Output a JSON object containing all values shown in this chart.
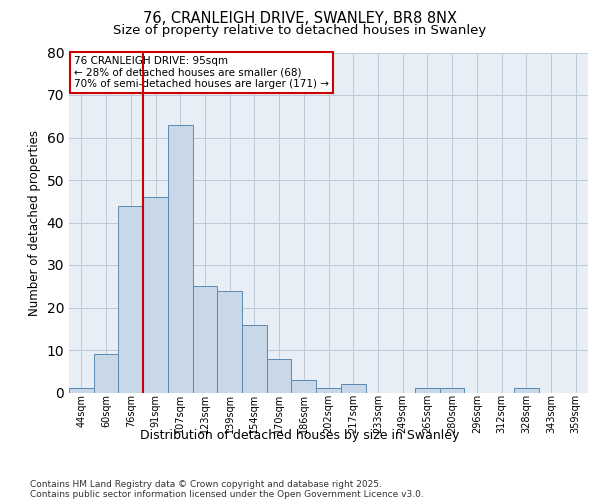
{
  "title_line1": "76, CRANLEIGH DRIVE, SWANLEY, BR8 8NX",
  "title_line2": "Size of property relative to detached houses in Swanley",
  "xlabel": "Distribution of detached houses by size in Swanley",
  "ylabel": "Number of detached properties",
  "categories": [
    "44sqm",
    "60sqm",
    "76sqm",
    "91sqm",
    "107sqm",
    "123sqm",
    "139sqm",
    "154sqm",
    "170sqm",
    "186sqm",
    "202sqm",
    "217sqm",
    "233sqm",
    "249sqm",
    "265sqm",
    "280sqm",
    "296sqm",
    "312sqm",
    "328sqm",
    "343sqm",
    "359sqm"
  ],
  "values": [
    1,
    9,
    44,
    46,
    63,
    25,
    24,
    16,
    8,
    3,
    1,
    2,
    0,
    0,
    1,
    1,
    0,
    0,
    1,
    0,
    0
  ],
  "bar_color": "#c8d8e8",
  "bar_edge_color": "#5a8ab0",
  "grid_color": "#c0c8d8",
  "bg_color": "#e8eef5",
  "vline_x": 2.5,
  "vline_color": "#cc0000",
  "annotation_box_text": "76 CRANLEIGH DRIVE: 95sqm\n← 28% of detached houses are smaller (68)\n70% of semi-detached houses are larger (171) →",
  "annotation_box_color": "#cc0000",
  "ylim": [
    0,
    80
  ],
  "yticks": [
    0,
    10,
    20,
    30,
    40,
    50,
    60,
    70,
    80
  ],
  "footer_text": "Contains HM Land Registry data © Crown copyright and database right 2025.\nContains public sector information licensed under the Open Government Licence v3.0.",
  "title_fontsize": 10.5,
  "subtitle_fontsize": 9.5,
  "tick_fontsize": 7,
  "xlabel_fontsize": 9,
  "ylabel_fontsize": 8.5,
  "footer_fontsize": 6.5,
  "annot_fontsize": 7.5
}
